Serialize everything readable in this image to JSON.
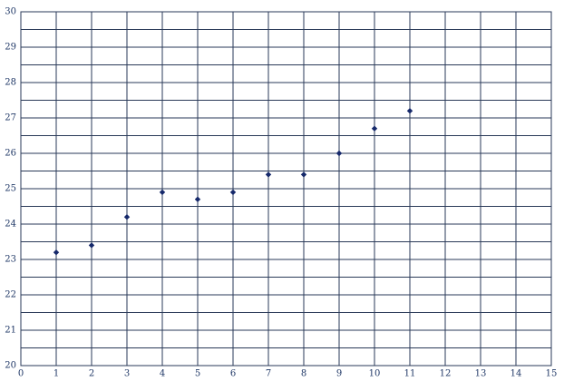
{
  "chart_data": {
    "type": "scatter",
    "x": [
      1,
      2,
      3,
      4,
      5,
      6,
      7,
      8,
      9,
      10,
      11
    ],
    "values": [
      23.2,
      23.4,
      24.2,
      24.9,
      24.7,
      24.9,
      25.4,
      25.4,
      26.0,
      26.7,
      27.2
    ],
    "color": "#16296b",
    "xlim": [
      0,
      15
    ],
    "xticks": [
      0,
      1,
      2,
      3,
      4,
      5,
      6,
      7,
      8,
      9,
      10,
      11,
      12,
      13,
      14,
      15
    ],
    "ylim": [
      20,
      30
    ],
    "yticks": [
      20,
      21,
      22,
      23,
      24,
      25,
      26,
      27,
      28,
      29,
      30
    ],
    "grid": true,
    "minor_grid": true
  }
}
